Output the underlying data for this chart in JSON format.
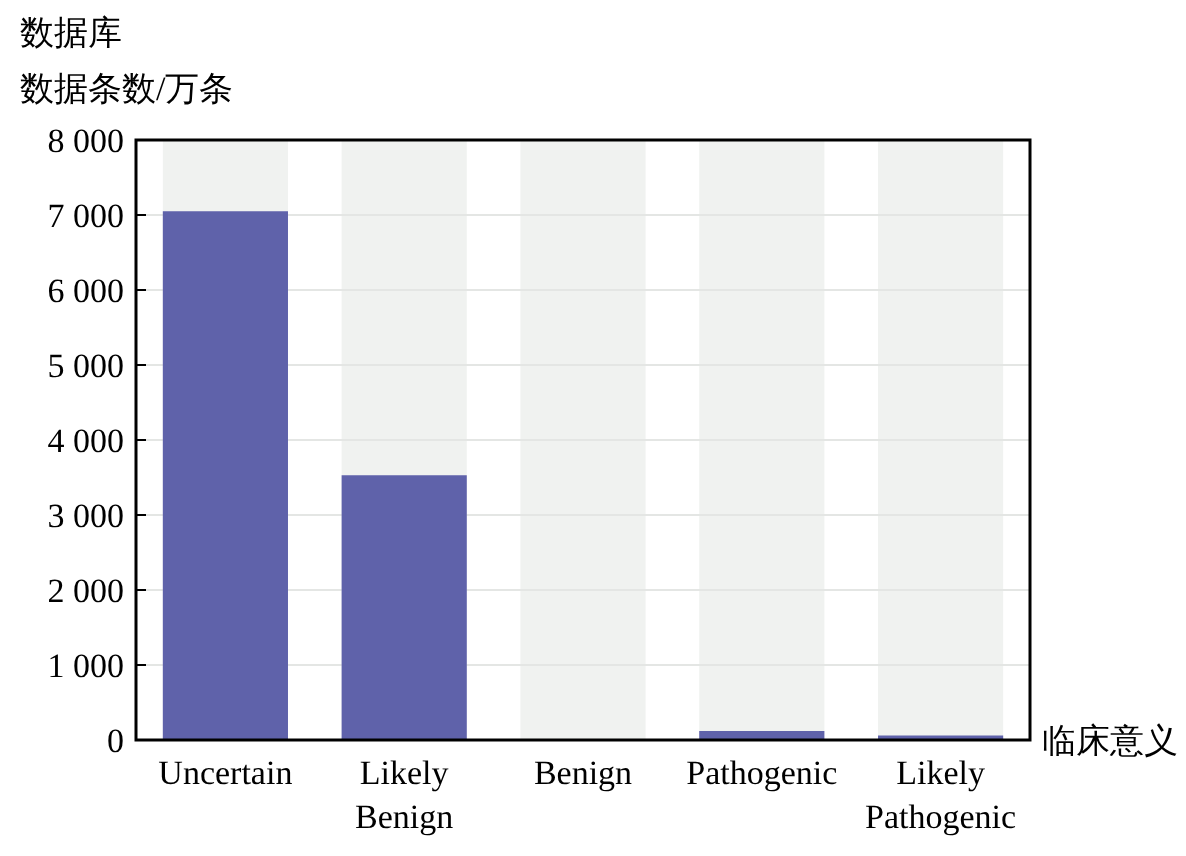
{
  "chart_data": {
    "type": "bar",
    "title": "数据库",
    "ylabel": "数据条数/万条",
    "xlabel": "临床意义",
    "categories": [
      "Uncertain",
      "Likely Benign",
      "Benign",
      "Pathogenic",
      "Likely Pathogenic"
    ],
    "values": [
      7050,
      3530,
      0,
      120,
      60
    ],
    "color": "#5f62aa",
    "ylim": [
      0,
      8000
    ],
    "yticks": [
      {
        "value": 0,
        "label": "0"
      },
      {
        "value": 1000,
        "label": "1 000"
      },
      {
        "value": 2000,
        "label": "2 000"
      },
      {
        "value": 3000,
        "label": "3 000"
      },
      {
        "value": 4000,
        "label": "4 000"
      },
      {
        "value": 5000,
        "label": "5 000"
      },
      {
        "value": 6000,
        "label": "6 000"
      },
      {
        "value": 7000,
        "label": "7 000"
      },
      {
        "value": 8000,
        "label": "8 000"
      }
    ],
    "grid": "y",
    "bands": [
      {
        "axis": "x",
        "from": "Uncertain",
        "to": "Uncertain",
        "color": "#f0f2f0"
      },
      {
        "axis": "x",
        "from": "Likely Benign",
        "to": "Likely Benign",
        "color": "#f0f2f0"
      },
      {
        "axis": "x",
        "from": "Benign",
        "to": "Benign",
        "color": "#f0f2f0"
      },
      {
        "axis": "x",
        "from": "Pathogenic",
        "to": "Pathogenic",
        "color": "#f0f2f0"
      },
      {
        "axis": "x",
        "from": "Likely Pathogenic",
        "to": "Likely Pathogenic",
        "color": "#f0f2f0"
      }
    ]
  }
}
